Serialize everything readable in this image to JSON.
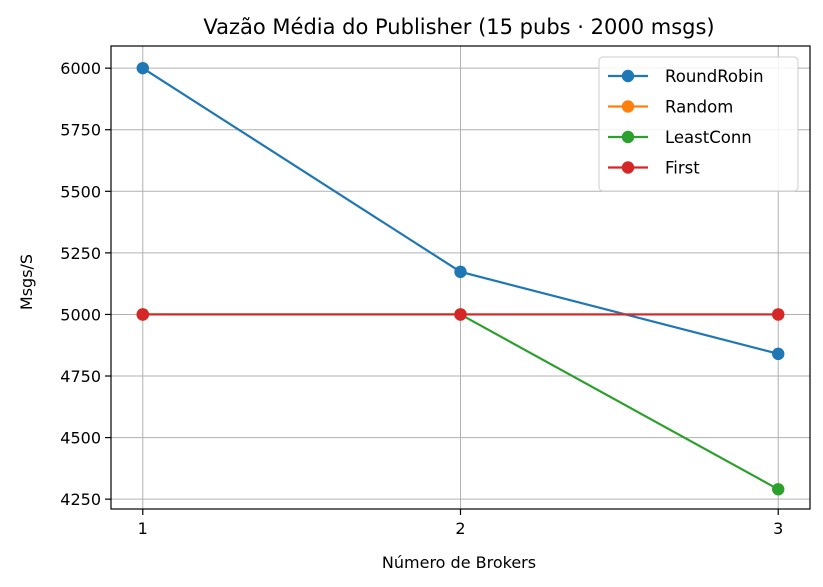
{
  "chart_data": {
    "type": "line",
    "title": "Vazão Média do Publisher (15 pubs · 2000 msgs)",
    "xlabel": "Número de Brokers",
    "ylabel": "Msgs/S",
    "x": [
      1,
      2,
      3
    ],
    "x_ticks": [
      "1",
      "2",
      "3"
    ],
    "xlim": [
      0.9,
      3.1
    ],
    "ylim": [
      4210,
      6090
    ],
    "y_ticks": [
      4250,
      4500,
      4750,
      5000,
      5250,
      5500,
      5750,
      6000
    ],
    "grid": true,
    "legend_position": "top-right",
    "series": [
      {
        "name": "RoundRobin",
        "color": "#1f77b4",
        "values": [
          6000,
          5173,
          4840
        ]
      },
      {
        "name": "Random",
        "color": "#ff7f0e",
        "values": [
          5000,
          5000,
          5000
        ]
      },
      {
        "name": "LeastConn",
        "color": "#2ca02c",
        "values": [
          5000,
          5000,
          4290
        ]
      },
      {
        "name": "First",
        "color": "#d62728",
        "values": [
          5000,
          5000,
          5000
        ]
      }
    ]
  }
}
